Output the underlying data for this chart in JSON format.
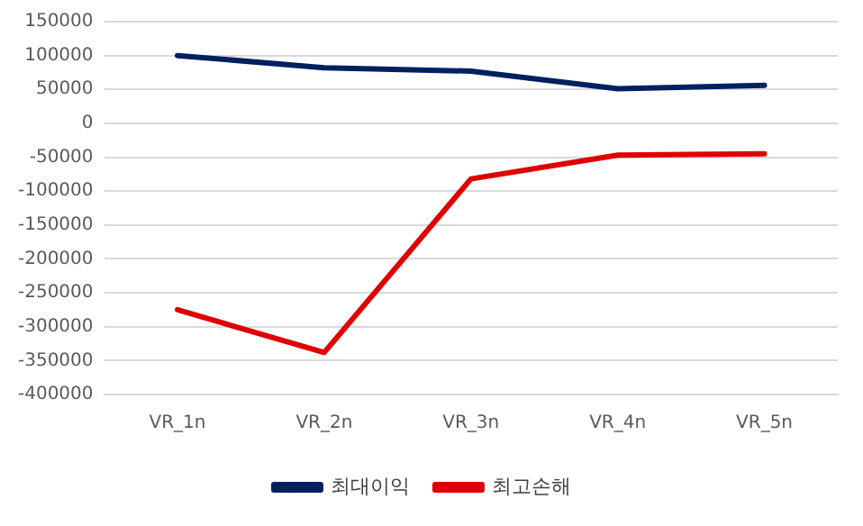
{
  "chart_data": {
    "type": "line",
    "categories": [
      "VR_1n",
      "VR_2n",
      "VR_3n",
      "VR_4n",
      "VR_5n"
    ],
    "series": [
      {
        "name": "최대이익",
        "color": "#002060",
        "values": [
          100000,
          82000,
          77000,
          51000,
          56000
        ]
      },
      {
        "name": "최고손해",
        "color": "#e00000",
        "values": [
          -275000,
          -338000,
          -82000,
          -47000,
          -45000
        ]
      }
    ],
    "ylim": [
      -400000,
      150000
    ],
    "yticks": [
      -400000,
      -350000,
      -300000,
      -250000,
      -200000,
      -150000,
      -100000,
      -50000,
      0,
      50000,
      100000,
      150000
    ],
    "grid": "y",
    "legend": "bottom",
    "marker": "none",
    "line_style": "solid"
  }
}
